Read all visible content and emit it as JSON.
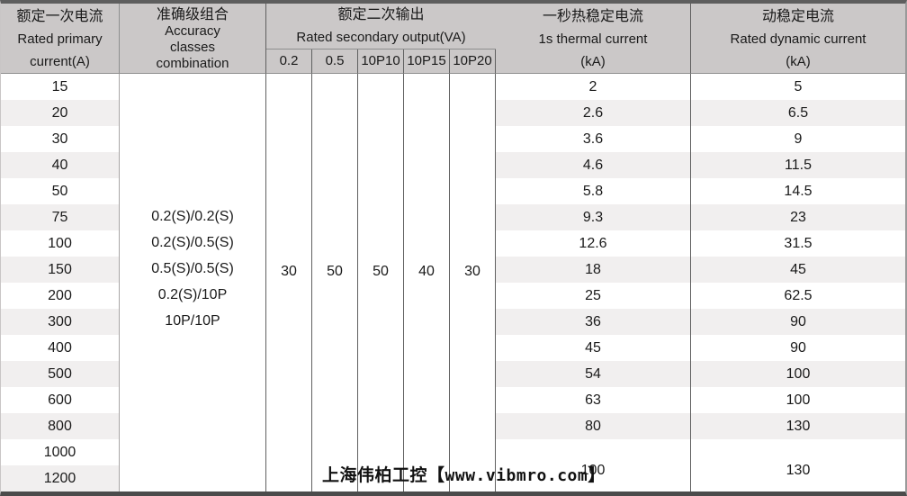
{
  "header": {
    "primary_current": {
      "zh": "额定一次电流",
      "en_line1": "Rated primary",
      "en_line2": "current(A)"
    },
    "accuracy": {
      "zh": "准确级组合",
      "en_line1": "Accuracy",
      "en_line2": "classes",
      "en_line3": "combination"
    },
    "secondary_output": {
      "zh": "额定二次输出",
      "en": "Rated secondary output(VA)",
      "sub_columns": [
        "0.2",
        "0.5",
        "10P10",
        "10P15",
        "10P20"
      ]
    },
    "thermal": {
      "zh": "一秒热稳定电流",
      "en": "1s thermal current",
      "unit": "(kA)"
    },
    "dynamic": {
      "zh": "动稳定电流",
      "en": "Rated dynamic current",
      "unit": "(kA)"
    }
  },
  "accuracy_combinations": [
    "0.2(S)/0.2(S)",
    "0.2(S)/0.5(S)",
    "0.5(S)/0.5(S)",
    "0.2(S)/10P",
    "10P/10P"
  ],
  "secondary_output_values": [
    "30",
    "50",
    "50",
    "40",
    "30"
  ],
  "rows": [
    {
      "primary": "15",
      "thermal": "2",
      "dynamic": "5"
    },
    {
      "primary": "20",
      "thermal": "2.6",
      "dynamic": "6.5"
    },
    {
      "primary": "30",
      "thermal": "3.6",
      "dynamic": "9"
    },
    {
      "primary": "40",
      "thermal": "4.6",
      "dynamic": "11.5"
    },
    {
      "primary": "50",
      "thermal": "5.8",
      "dynamic": "14.5"
    },
    {
      "primary": "75",
      "thermal": "9.3",
      "dynamic": "23"
    },
    {
      "primary": "100",
      "thermal": "12.6",
      "dynamic": "31.5"
    },
    {
      "primary": "150",
      "thermal": "18",
      "dynamic": "45"
    },
    {
      "primary": "200",
      "thermal": "25",
      "dynamic": "62.5"
    },
    {
      "primary": "300",
      "thermal": "36",
      "dynamic": "90"
    },
    {
      "primary": "400",
      "thermal": "45",
      "dynamic": "90"
    },
    {
      "primary": "500",
      "thermal": "54",
      "dynamic": "100"
    },
    {
      "primary": "600",
      "thermal": "63",
      "dynamic": "100"
    },
    {
      "primary": "800",
      "thermal": "80",
      "dynamic": "130"
    },
    {
      "primary": "1000"
    },
    {
      "primary": "1200"
    }
  ],
  "merged_last_two_rows": {
    "thermal": "100",
    "dynamic": "130"
  },
  "watermark": {
    "prefix": "上海伟柏工控【",
    "url": "www.vibmro.com",
    "suffix": "】"
  },
  "colors": {
    "header_bg": "#cbc8c8",
    "row_stripe": "#f1efef",
    "row_white": "#ffffff",
    "grid_dark": "#606060",
    "grid_medium": "#8f8f8f",
    "grid_light": "#a9a6a6",
    "top_border": "#5e5e5e",
    "bottom_border": "#4b4b4b",
    "text": "#1a1a1a"
  }
}
